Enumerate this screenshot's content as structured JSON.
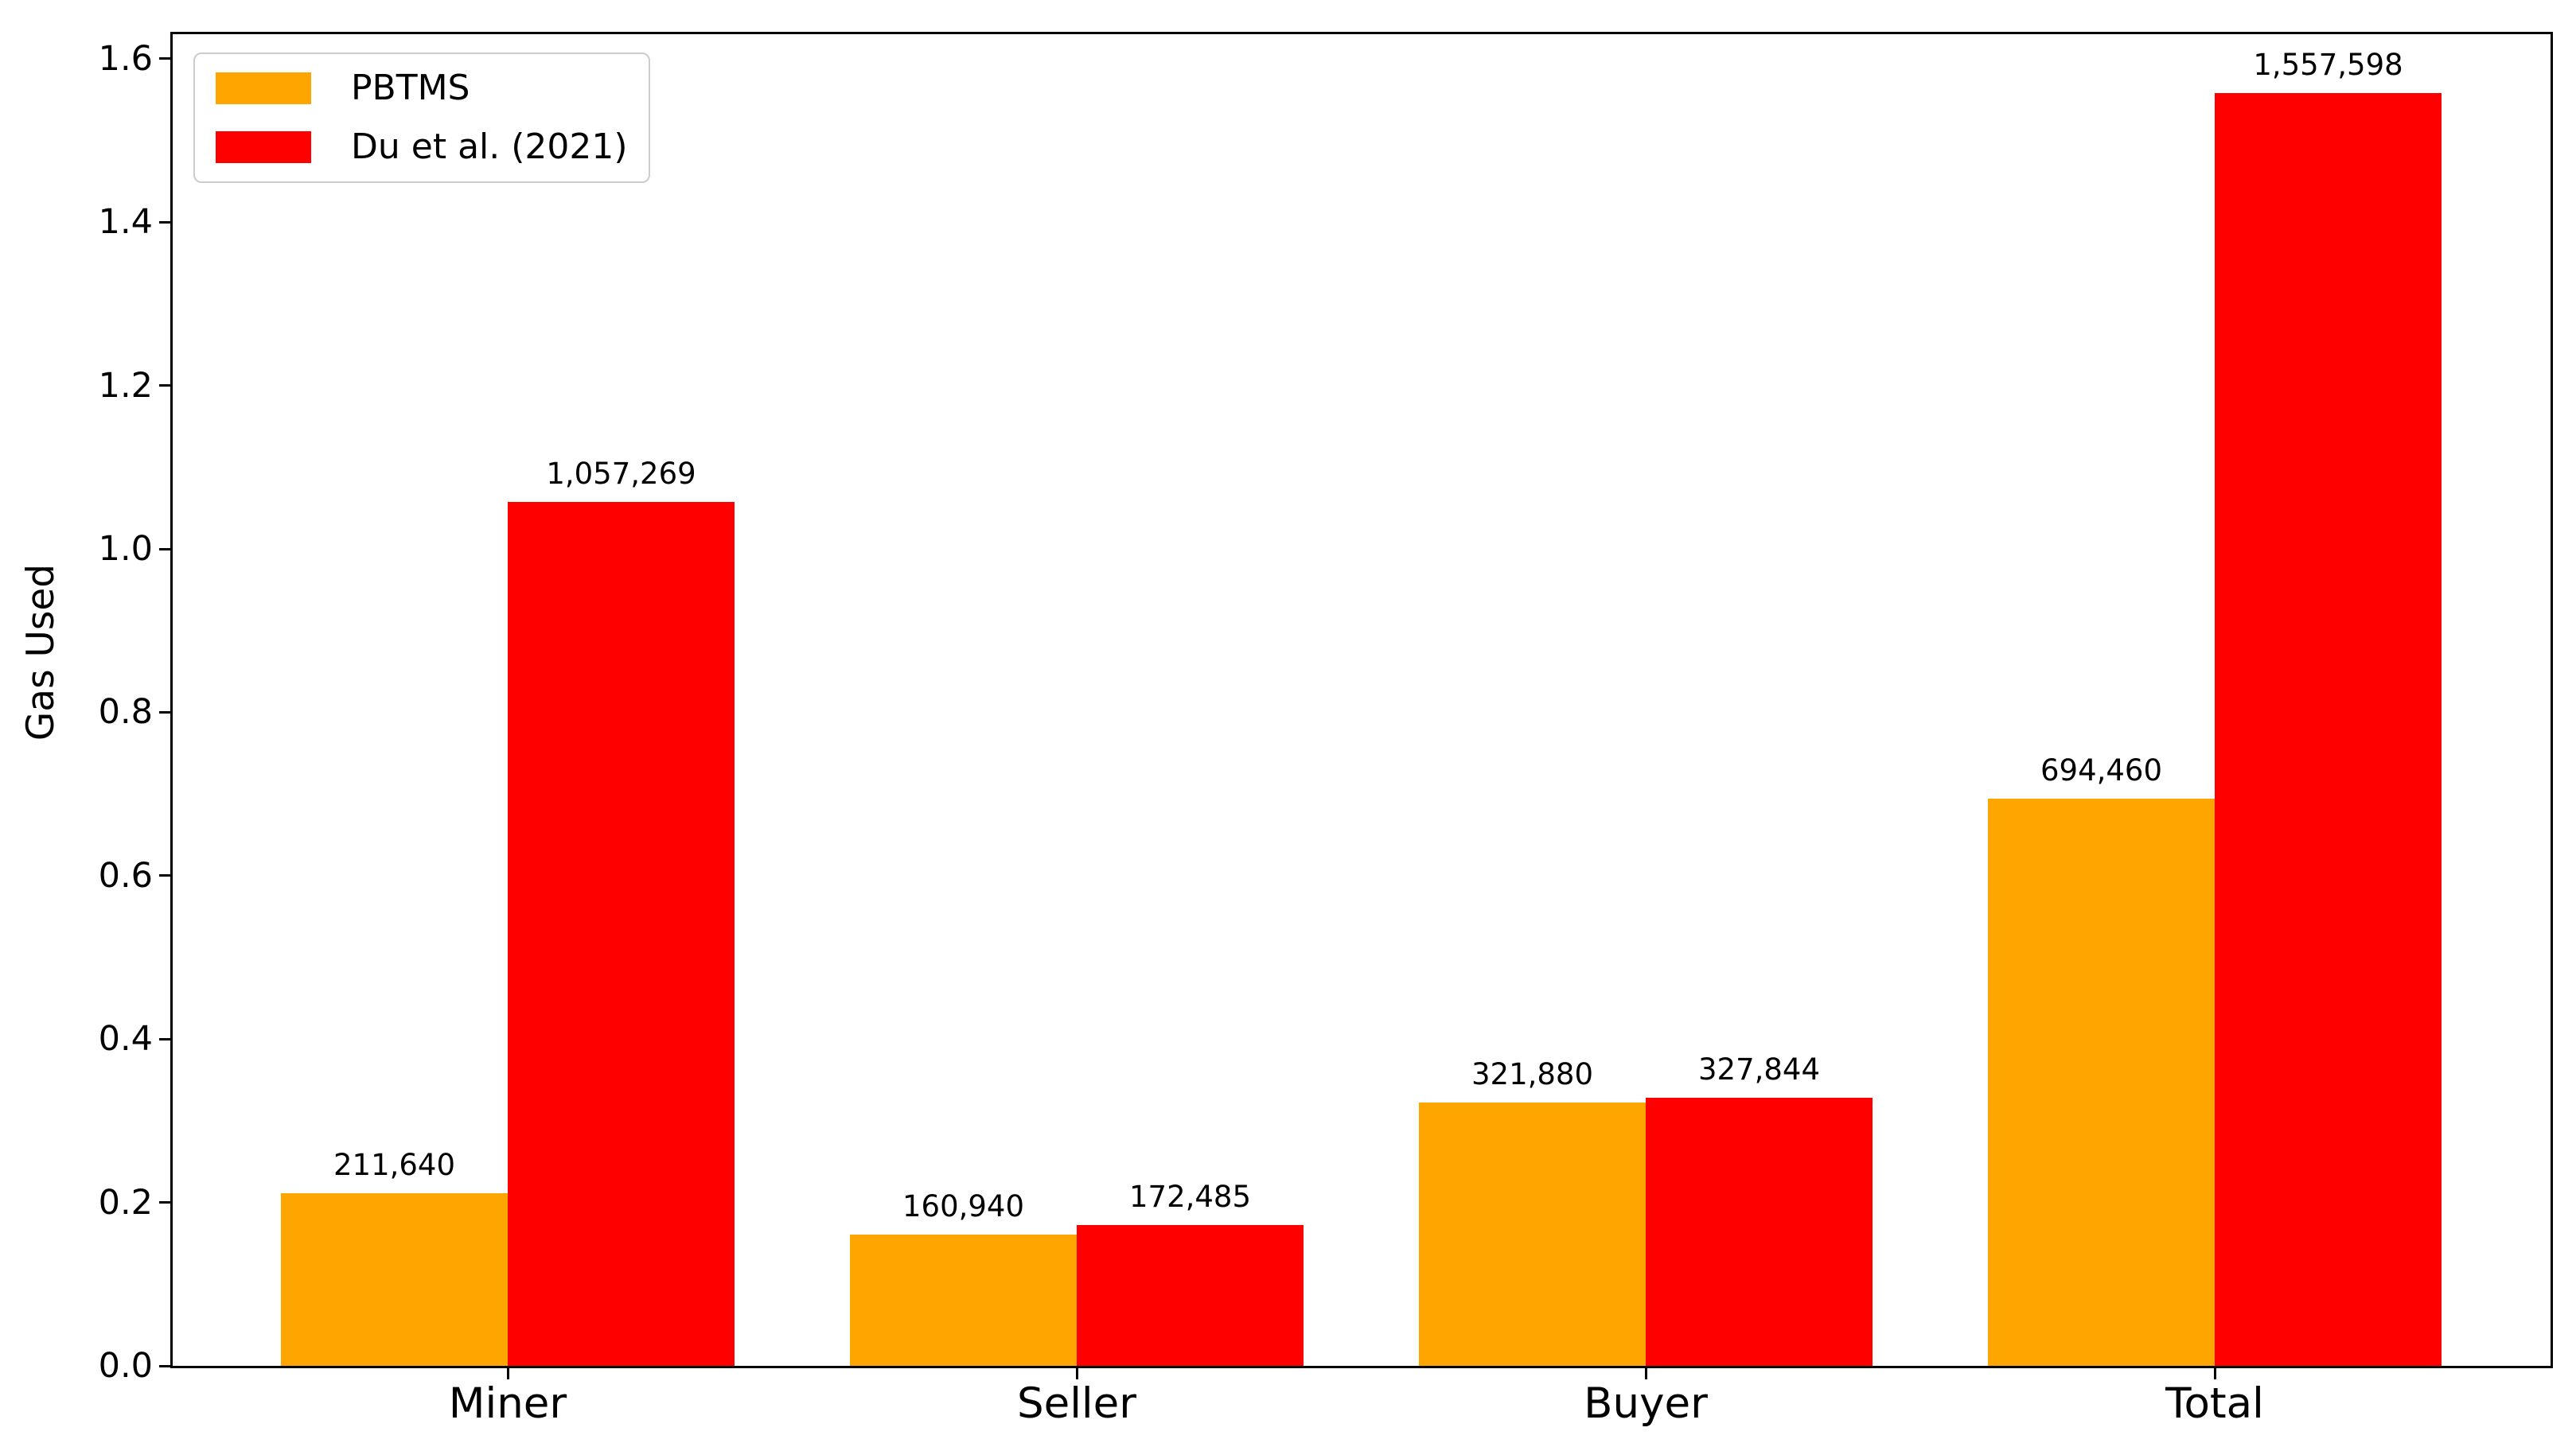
{
  "figure": {
    "background": "#ffffff",
    "text_color": "#000000"
  },
  "chart_data": {
    "type": "bar",
    "title": "",
    "xlabel": "",
    "ylabel": "Gas Used",
    "categories": [
      "Miner",
      "Seller",
      "Buyer",
      "Total"
    ],
    "series": [
      {
        "name": "PBTMS",
        "color": "#FFA500",
        "values": [
          211640,
          160940,
          321880,
          694460
        ],
        "labels": [
          "211,640",
          "160,940",
          "321,880",
          "694,460"
        ]
      },
      {
        "name": "Du et al. (2021)",
        "color": "#FF0000",
        "values": [
          1057269,
          172485,
          327844,
          1557598
        ],
        "labels": [
          "1,057,269",
          "172,485",
          "327,844",
          "1,557,598"
        ]
      }
    ],
    "yticks": [
      "0.0",
      "0.2",
      "0.4",
      "0.6",
      "0.8",
      "1.0",
      "1.2",
      "1.4",
      "1.6"
    ],
    "ytick_values": [
      0,
      200000,
      400000,
      600000,
      800000,
      1000000,
      1200000,
      1400000,
      1600000
    ],
    "ylim": [
      0,
      1600000
    ],
    "grid": false,
    "legend_position": "upper left"
  }
}
